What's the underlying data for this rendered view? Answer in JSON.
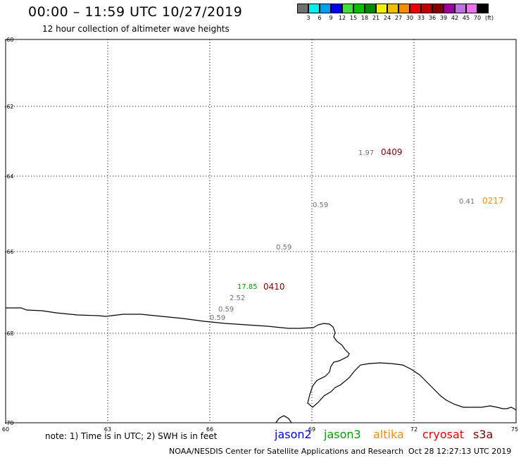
{
  "header": {
    "title": "00:00 – 11:59 UTC 10/27/2019",
    "subtitle": "12 hour collection of altimeter wave heights"
  },
  "legend": {
    "colors": [
      "#707070",
      "#00f0f0",
      "#00a0f0",
      "#0000f0",
      "#40e040",
      "#00c000",
      "#008800",
      "#f0f000",
      "#f0c000",
      "#f09000",
      "#f00000",
      "#c00000",
      "#800000",
      "#a000a0",
      "#c070e0",
      "#f070f0",
      "#000000"
    ],
    "labels": [
      "3",
      "6",
      "9",
      "12",
      "15",
      "18",
      "21",
      "24",
      "27",
      "30",
      "33",
      "36",
      "39",
      "42",
      "45",
      "70",
      "(ft)"
    ]
  },
  "axes": {
    "lat_labels": [
      "-60",
      "-62",
      "-64",
      "-66",
      "-68",
      "-70"
    ],
    "lon_labels": [
      "60",
      "63",
      "66",
      "69",
      "72",
      "75"
    ]
  },
  "observations": [
    {
      "value": "1.97",
      "color": "#707070"
    },
    {
      "value": "0409",
      "color": "#800000"
    },
    {
      "value": "0.41",
      "color": "#707070"
    },
    {
      "value": "0217",
      "color": "#f09000"
    },
    {
      "value": "0.59",
      "color": "#707070"
    },
    {
      "value": "0.59",
      "color": "#707070"
    },
    {
      "value": "17.85",
      "color": "#00a000"
    },
    {
      "value": "0410",
      "color": "#800000"
    },
    {
      "value": "2.52",
      "color": "#707070"
    },
    {
      "value": "0.59",
      "color": "#707070"
    },
    {
      "value": "0.59",
      "color": "#707070"
    }
  ],
  "footer": {
    "note": "note: 1) Time is in UTC; 2) SWH is in feet",
    "satellites": [
      {
        "name": "jason2",
        "color": "#0000f0"
      },
      {
        "name": "jason3",
        "color": "#00a000"
      },
      {
        "name": "altika",
        "color": "#f09000"
      },
      {
        "name": "cryosat",
        "color": "#f00000"
      },
      {
        "name": "s3a",
        "color": "#800000"
      }
    ],
    "credit": "NOAA/NESDIS Center for Satellite Applications and Research",
    "timestamp": "Oct 28 12:27:13 UTC 2019"
  }
}
